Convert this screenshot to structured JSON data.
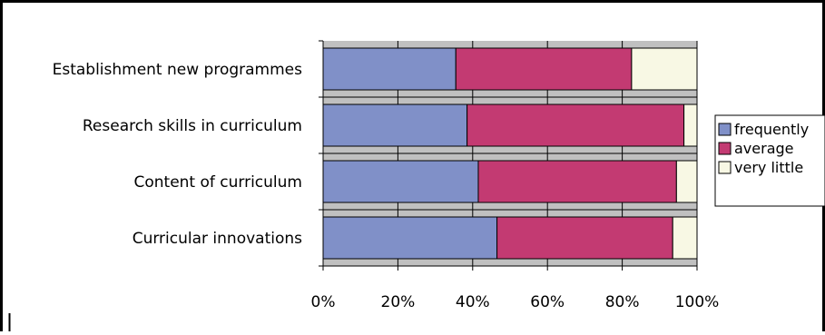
{
  "chart_data": {
    "type": "bar",
    "orientation": "horizontal",
    "stacked": "percent",
    "title": "",
    "xlabel": "",
    "ylabel": "",
    "xlim": [
      0,
      100
    ],
    "x_ticks": [
      "0%",
      "20%",
      "40%",
      "60%",
      "80%",
      "100%"
    ],
    "grid": true,
    "legend_position": "right",
    "categories": [
      "Establishment new programmes",
      "Research skills in curriculum",
      "Content of curriculum",
      "Curricular innovations"
    ],
    "series": [
      {
        "name": "frequently",
        "color": "#8090C8",
        "values": [
          35.5,
          38.5,
          41.5,
          46.5
        ]
      },
      {
        "name": "average",
        "color": "#C33A72",
        "values": [
          47.0,
          58.0,
          53.0,
          47.0
        ]
      },
      {
        "name": "very little",
        "color": "#F8F8E4",
        "values": [
          17.5,
          3.5,
          5.5,
          6.5
        ]
      }
    ],
    "plot_background": "#C0C0C0"
  }
}
